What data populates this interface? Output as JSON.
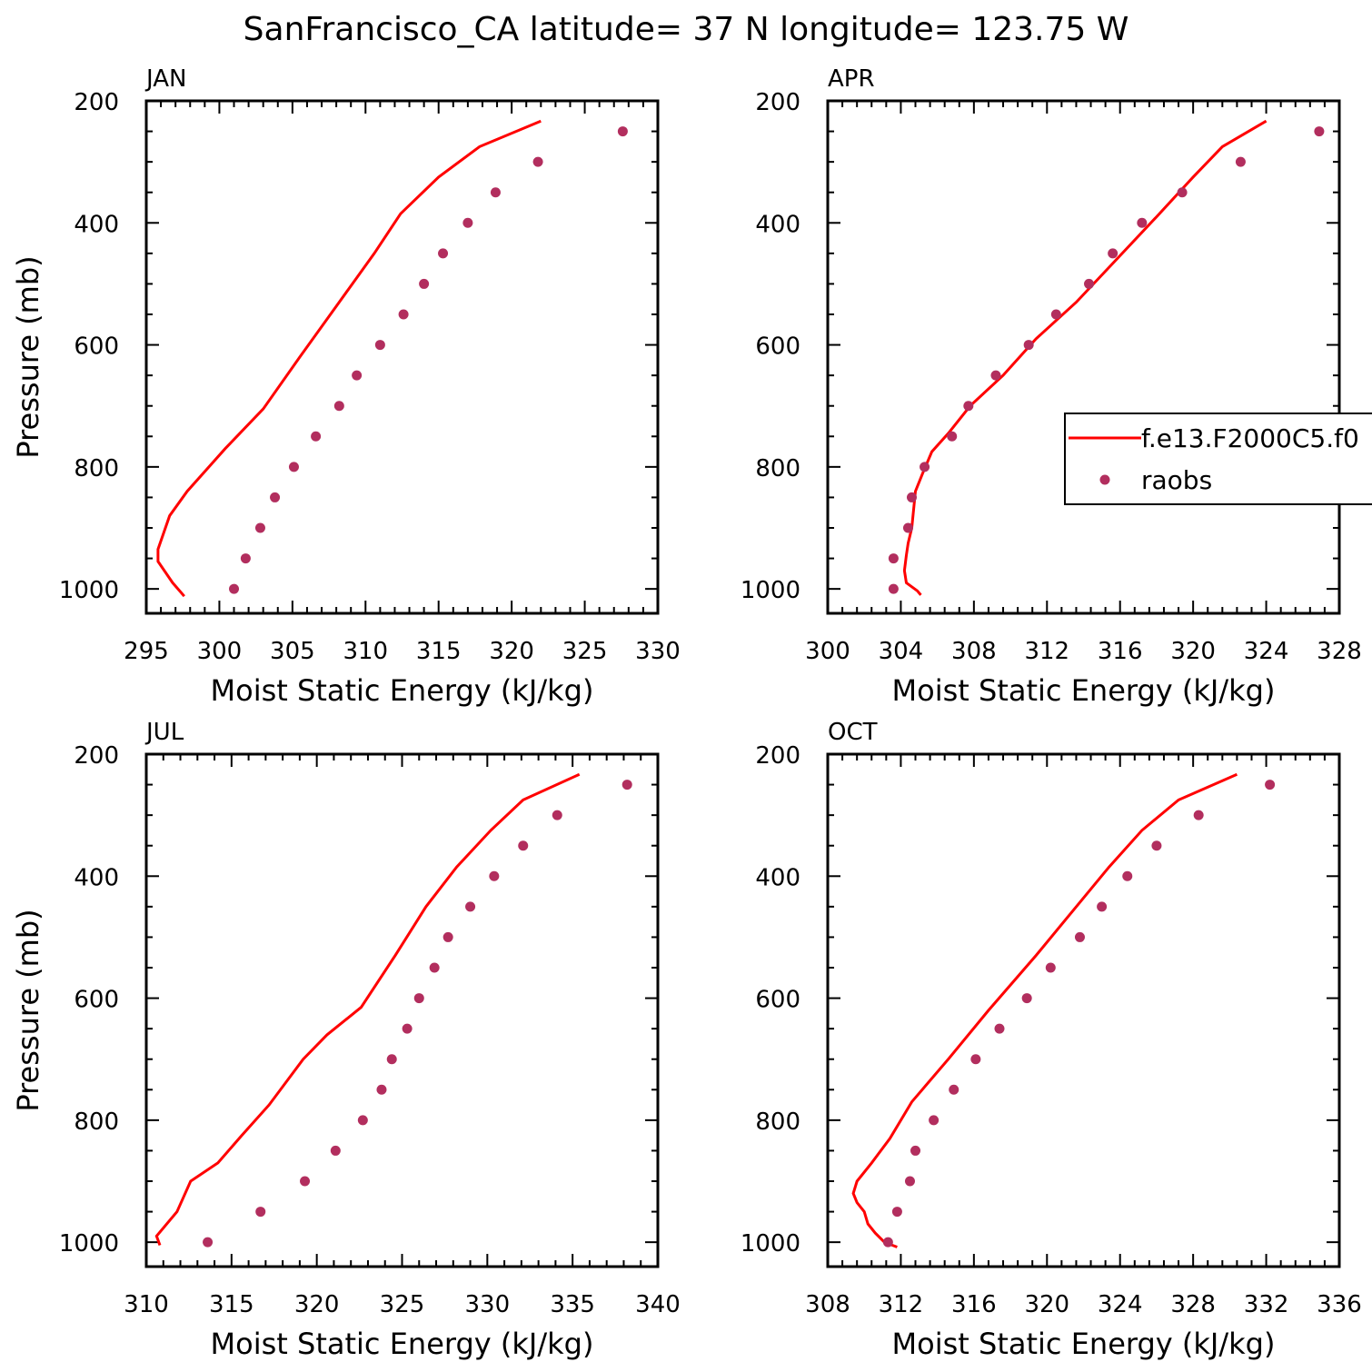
{
  "figure": {
    "title": "SanFrancisco_CA  latitude= 37 N longitude= 123.75 W"
  },
  "legend": {
    "model_label": "f.e13.F2000C5.f0",
    "obs_label": "raobs",
    "model_color": "#ff0000",
    "obs_color": "#b22e5e"
  },
  "chart_data": [
    {
      "type": "line",
      "panel_label": "JAN",
      "xlabel": "Moist Static Energy (kJ/kg)",
      "ylabel": "Pressure (mb)",
      "xlim": [
        295,
        330
      ],
      "ylim": [
        1000,
        200
      ],
      "xticks": [
        295,
        300,
        305,
        310,
        315,
        320,
        325,
        330
      ],
      "yticks": [
        200,
        400,
        600,
        800,
        1000
      ],
      "grid": false,
      "series": [
        {
          "kind": "line",
          "x": [
            322,
            317.8,
            315,
            312.4,
            310.6,
            308.2,
            305.5,
            303,
            300.4,
            297.8,
            296.6,
            295.8,
            295.8,
            296.8,
            297.6
          ],
          "y": [
            233,
            275,
            325,
            385,
            450,
            530,
            620,
            705,
            770,
            840,
            880,
            935,
            955,
            990,
            1012
          ]
        },
        {
          "kind": "scatter",
          "x": [
            327.6,
            321.8,
            318.9,
            317,
            315.3,
            314,
            312.6,
            311,
            309.4,
            308.2,
            306.6,
            305.1,
            303.8,
            302.8,
            301.8,
            301
          ],
          "y": [
            250,
            300,
            350,
            400,
            450,
            500,
            550,
            600,
            650,
            700,
            750,
            800,
            850,
            900,
            950,
            1000
          ]
        }
      ]
    },
    {
      "type": "line",
      "panel_label": "APR",
      "xlabel": "Moist Static Energy (kJ/kg)",
      "ylabel": "",
      "xlim": [
        300,
        328
      ],
      "ylim": [
        1000,
        200
      ],
      "xticks": [
        300,
        304,
        308,
        312,
        316,
        320,
        324,
        328
      ],
      "yticks": [
        200,
        400,
        600,
        800,
        1000
      ],
      "grid": false,
      "series": [
        {
          "kind": "line",
          "x": [
            324,
            321.6,
            320,
            318,
            315.8,
            313.6,
            311.4,
            309.6,
            307.8,
            306.6,
            305.7,
            305.2,
            304.8,
            304.7,
            304.6,
            304.4,
            304.3,
            304.2,
            304.3,
            304.9,
            305.1
          ],
          "y": [
            233,
            275,
            325,
            390,
            460,
            530,
            590,
            650,
            700,
            745,
            775,
            810,
            840,
            870,
            900,
            925,
            945,
            970,
            990,
            1003,
            1010
          ]
        },
        {
          "kind": "scatter",
          "x": [
            326.9,
            322.6,
            319.4,
            317.2,
            315.6,
            314.3,
            312.5,
            311,
            309.2,
            307.7,
            306.8,
            305.3,
            304.6,
            304.4,
            303.6,
            303.6
          ],
          "y": [
            250,
            300,
            350,
            400,
            450,
            500,
            550,
            600,
            650,
            700,
            750,
            800,
            850,
            900,
            950,
            1000
          ]
        }
      ]
    },
    {
      "type": "line",
      "panel_label": "JUL",
      "xlabel": "Moist Static Energy (kJ/kg)",
      "ylabel": "Pressure (mb)",
      "xlim": [
        310,
        340
      ],
      "ylim": [
        1000,
        200
      ],
      "xticks": [
        310,
        315,
        320,
        325,
        330,
        335,
        340
      ],
      "yticks": [
        200,
        400,
        600,
        800,
        1000
      ],
      "grid": false,
      "series": [
        {
          "kind": "line",
          "x": [
            335.4,
            332.1,
            330.2,
            328.2,
            326.4,
            324.6,
            322.6,
            320.6,
            319.2,
            317.2,
            315.6,
            314.2,
            312.6,
            312.2,
            311.8,
            310.6,
            310.8
          ],
          "y": [
            233,
            275,
            325,
            385,
            450,
            530,
            615,
            660,
            700,
            775,
            825,
            870,
            900,
            925,
            950,
            990,
            1005
          ]
        },
        {
          "kind": "scatter",
          "x": [
            338.2,
            334.1,
            332.1,
            330.4,
            329,
            327.7,
            326.9,
            326,
            325.3,
            324.4,
            323.8,
            322.7,
            321.1,
            319.3,
            316.7,
            313.6
          ],
          "y": [
            250,
            300,
            350,
            400,
            450,
            500,
            550,
            600,
            650,
            700,
            750,
            800,
            850,
            900,
            950,
            1000
          ]
        }
      ]
    },
    {
      "type": "line",
      "panel_label": "OCT",
      "xlabel": "Moist Static Energy (kJ/kg)",
      "ylabel": "",
      "xlim": [
        308,
        336
      ],
      "ylim": [
        1000,
        200
      ],
      "xticks": [
        308,
        312,
        316,
        320,
        324,
        328,
        332,
        336
      ],
      "yticks": [
        200,
        400,
        600,
        800,
        1000
      ],
      "grid": false,
      "series": [
        {
          "kind": "line",
          "x": [
            330.4,
            327.2,
            325.2,
            323.4,
            321.6,
            319.4,
            316.8,
            314.6,
            312.6,
            311.4,
            310.4,
            309.6,
            309.4,
            309.6,
            310.0,
            310.2,
            310.6,
            311.1,
            311.8
          ],
          "y": [
            233,
            275,
            325,
            385,
            450,
            530,
            620,
            700,
            770,
            830,
            870,
            900,
            920,
            935,
            950,
            970,
            985,
            1000,
            1008
          ]
        },
        {
          "kind": "scatter",
          "x": [
            332.2,
            328.3,
            326,
            324.4,
            323,
            321.8,
            320.2,
            318.9,
            317.4,
            316.1,
            314.9,
            313.8,
            312.8,
            312.5,
            311.8,
            311.3
          ],
          "y": [
            250,
            300,
            350,
            400,
            450,
            500,
            550,
            600,
            650,
            700,
            750,
            800,
            850,
            900,
            950,
            1000
          ]
        }
      ]
    }
  ]
}
